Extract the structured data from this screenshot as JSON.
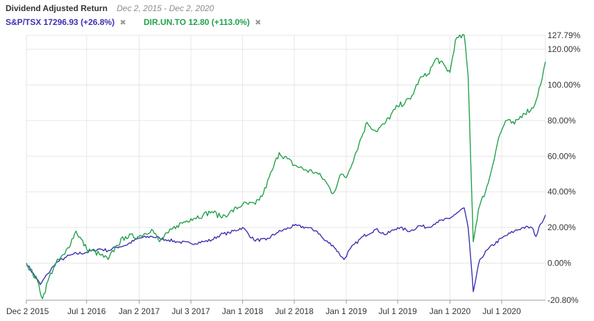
{
  "header": {
    "title": "Dividend Adjusted Return",
    "date_range": "Dec 2, 2015 - Dec 2, 2020"
  },
  "legend": [
    {
      "label": "S&P/TSX 17296.93 (+26.8%)",
      "color": "#3b2fb0",
      "remove_icon": "close-icon",
      "remove_glyph": "✖"
    },
    {
      "label": "DIR.UN.TO 12.80 (+113.0%)",
      "color": "#22a04a",
      "remove_icon": "close-icon",
      "remove_glyph": "✖"
    }
  ],
  "chart_data": {
    "type": "line",
    "x_tick_labels": [
      "Dec 2 2015",
      "Jul 1 2016",
      "Jan 2 2017",
      "Jul 3 2017",
      "Jan 1 2018",
      "Jul 2 2018",
      "Jan 1 2019",
      "Jul 1 2019",
      "Jan 1 2020",
      "Jul 1 2020"
    ],
    "x_tick_values": [
      "2015-12-02",
      "2016-07-01",
      "2017-01-02",
      "2017-07-03",
      "2018-01-01",
      "2018-07-02",
      "2019-01-01",
      "2019-07-01",
      "2020-01-01",
      "2020-07-01"
    ],
    "y_tick_labels": [
      "127.79%",
      "120.00%",
      "100.00%",
      "80.00%",
      "60.00%",
      "40.00%",
      "20.00%",
      "0.00%",
      "-20.80%"
    ],
    "y_tick_values": [
      127.79,
      120,
      100,
      80,
      60,
      40,
      20,
      0,
      -20.8
    ],
    "ylim": [
      -20.8,
      127.79
    ],
    "xlim": [
      "2015-12-02",
      "2020-12-02"
    ],
    "grid": true,
    "legend_position": "top-left",
    "series": [
      {
        "name": "S&P/TSX",
        "color": "#3b2fb0",
        "points": [
          [
            "2015-12-02",
            0
          ],
          [
            "2016-01-20",
            -12
          ],
          [
            "2016-02-15",
            -6
          ],
          [
            "2016-03-15",
            0
          ],
          [
            "2016-04-15",
            3
          ],
          [
            "2016-05-15",
            5
          ],
          [
            "2016-07-01",
            6
          ],
          [
            "2016-08-15",
            8
          ],
          [
            "2016-09-15",
            7
          ],
          [
            "2016-10-15",
            9
          ],
          [
            "2016-11-15",
            10
          ],
          [
            "2017-01-02",
            14
          ],
          [
            "2017-02-15",
            15
          ],
          [
            "2017-03-15",
            14
          ],
          [
            "2017-04-15",
            13
          ],
          [
            "2017-05-15",
            12
          ],
          [
            "2017-07-03",
            11
          ],
          [
            "2017-08-15",
            12
          ],
          [
            "2017-09-15",
            13
          ],
          [
            "2017-10-15",
            16
          ],
          [
            "2017-11-15",
            17
          ],
          [
            "2018-01-01",
            20
          ],
          [
            "2018-02-10",
            13
          ],
          [
            "2018-03-25",
            13
          ],
          [
            "2018-05-01",
            17
          ],
          [
            "2018-07-02",
            21
          ],
          [
            "2018-08-15",
            20
          ],
          [
            "2018-09-20",
            18
          ],
          [
            "2018-10-15",
            13
          ],
          [
            "2018-11-15",
            10
          ],
          [
            "2018-12-24",
            2
          ],
          [
            "2019-01-15",
            8
          ],
          [
            "2019-03-01",
            15
          ],
          [
            "2019-04-15",
            19
          ],
          [
            "2019-05-20",
            16
          ],
          [
            "2019-07-01",
            20
          ],
          [
            "2019-08-15",
            18
          ],
          [
            "2019-09-15",
            21
          ],
          [
            "2019-10-15",
            20
          ],
          [
            "2019-11-15",
            23
          ],
          [
            "2020-01-01",
            25
          ],
          [
            "2020-01-15",
            27
          ],
          [
            "2020-02-20",
            31
          ],
          [
            "2020-03-05",
            20
          ],
          [
            "2020-03-23",
            -16
          ],
          [
            "2020-04-15",
            2
          ],
          [
            "2020-05-15",
            8
          ],
          [
            "2020-07-01",
            14
          ],
          [
            "2020-08-15",
            18
          ],
          [
            "2020-09-15",
            20
          ],
          [
            "2020-10-15",
            20
          ],
          [
            "2020-10-30",
            15
          ],
          [
            "2020-11-15",
            22
          ],
          [
            "2020-12-02",
            27
          ]
        ]
      },
      {
        "name": "DIR.UN.TO",
        "color": "#22a04a",
        "points": [
          [
            "2015-12-02",
            0
          ],
          [
            "2016-01-10",
            -10
          ],
          [
            "2016-01-28",
            -20
          ],
          [
            "2016-02-20",
            -8
          ],
          [
            "2016-03-15",
            0
          ],
          [
            "2016-04-15",
            5
          ],
          [
            "2016-05-25",
            18
          ],
          [
            "2016-07-01",
            8
          ],
          [
            "2016-08-15",
            5
          ],
          [
            "2016-09-15",
            2
          ],
          [
            "2016-10-15",
            10
          ],
          [
            "2016-11-15",
            15
          ],
          [
            "2017-01-02",
            15
          ],
          [
            "2017-02-15",
            19
          ],
          [
            "2017-03-15",
            12
          ],
          [
            "2017-04-15",
            17
          ],
          [
            "2017-05-15",
            21
          ],
          [
            "2017-07-03",
            25
          ],
          [
            "2017-08-15",
            27
          ],
          [
            "2017-09-15",
            29
          ],
          [
            "2017-10-15",
            26
          ],
          [
            "2017-11-15",
            28
          ],
          [
            "2018-01-01",
            33
          ],
          [
            "2018-02-15",
            33
          ],
          [
            "2018-03-15",
            39
          ],
          [
            "2018-04-15",
            52
          ],
          [
            "2018-05-10",
            62
          ],
          [
            "2018-07-02",
            55
          ],
          [
            "2018-08-15",
            52
          ],
          [
            "2018-09-15",
            51
          ],
          [
            "2018-10-15",
            47
          ],
          [
            "2018-11-15",
            39
          ],
          [
            "2018-12-15",
            50
          ],
          [
            "2019-01-01",
            48
          ],
          [
            "2019-02-15",
            67
          ],
          [
            "2019-03-15",
            79
          ],
          [
            "2019-04-15",
            74
          ],
          [
            "2019-05-15",
            78
          ],
          [
            "2019-07-01",
            88
          ],
          [
            "2019-08-15",
            92
          ],
          [
            "2019-09-15",
            103
          ],
          [
            "2019-10-15",
            106
          ],
          [
            "2019-11-15",
            115
          ],
          [
            "2020-01-01",
            107
          ],
          [
            "2020-01-20",
            125
          ],
          [
            "2020-02-20",
            128
          ],
          [
            "2020-03-05",
            105
          ],
          [
            "2020-03-23",
            12
          ],
          [
            "2020-04-10",
            30
          ],
          [
            "2020-05-15",
            45
          ],
          [
            "2020-06-20",
            70
          ],
          [
            "2020-07-15",
            80
          ],
          [
            "2020-08-15",
            78
          ],
          [
            "2020-09-15",
            84
          ],
          [
            "2020-10-20",
            87
          ],
          [
            "2020-11-15",
            100
          ],
          [
            "2020-12-02",
            113
          ]
        ]
      }
    ]
  }
}
